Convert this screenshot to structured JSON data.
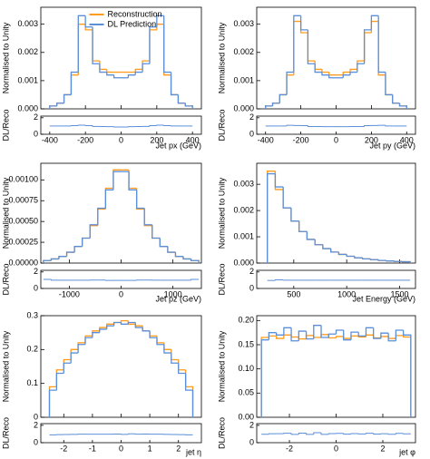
{
  "chart_data": [
    {
      "type": "histogram",
      "xlabel": "Jet px (GeV)",
      "ylabel": "Normalised to Unity",
      "legend": "upper center",
      "bins": [
        -400,
        -360,
        -320,
        -280,
        -240,
        -200,
        -160,
        -120,
        -80,
        -40,
        0,
        40,
        80,
        120,
        160,
        200,
        240,
        280,
        320,
        360,
        400
      ],
      "series": [
        {
          "name": "Reconstruction",
          "color": "#ff9a1a",
          "values": [
            0.0001,
            0.0002,
            0.0005,
            0.0012,
            0.003,
            0.0028,
            0.0017,
            0.0014,
            0.0013,
            0.0013,
            0.0013,
            0.0013,
            0.0014,
            0.0017,
            0.0028,
            0.003,
            0.0012,
            0.0005,
            0.0002,
            0.0001
          ]
        },
        {
          "name": "DL Prediction",
          "color": "#5b8fd9",
          "values": [
            0.0001,
            0.0002,
            0.0005,
            0.0013,
            0.0033,
            0.0029,
            0.0016,
            0.0013,
            0.0012,
            0.0011,
            0.0011,
            0.0012,
            0.0013,
            0.0016,
            0.0029,
            0.0033,
            0.0013,
            0.0005,
            0.0002,
            0.0001
          ]
        }
      ],
      "xlim": [
        -450,
        450
      ],
      "xticks": [
        -400,
        -200,
        0,
        200,
        400
      ],
      "ylim": [
        0,
        0.0036
      ],
      "yticks": [
        {
          "value": 0,
          "label": "0.000"
        },
        0.001,
        0.002,
        0.003
      ],
      "ratio": {
        "ylabel": "DL/Reco",
        "ylim": [
          0,
          2.2
        ],
        "yticks": [
          0,
          2
        ],
        "values": [
          1,
          1,
          1,
          1.05,
          1.1,
          1.04,
          0.95,
          0.93,
          0.92,
          0.88,
          0.88,
          0.92,
          0.93,
          0.95,
          1.04,
          1.1,
          1.05,
          1,
          1,
          1
        ]
      }
    },
    {
      "type": "histogram",
      "xlabel": "Jet py (GeV)",
      "ylabel": "Normalised to Unity",
      "bins": [
        -400,
        -360,
        -320,
        -280,
        -240,
        -200,
        -160,
        -120,
        -80,
        -40,
        0,
        40,
        80,
        120,
        160,
        200,
        240,
        280,
        320,
        360,
        400
      ],
      "series": [
        {
          "name": "Reconstruction",
          "color": "#ff9a1a",
          "values": [
            0.0001,
            0.0002,
            0.0005,
            0.0012,
            0.0031,
            0.0027,
            0.0017,
            0.0014,
            0.0013,
            0.0012,
            0.0012,
            0.0013,
            0.0014,
            0.0017,
            0.0027,
            0.0031,
            0.0012,
            0.0005,
            0.0002,
            0.0001
          ]
        },
        {
          "name": "DL Prediction",
          "color": "#5b8fd9",
          "values": [
            0.0001,
            0.0002,
            0.0005,
            0.0013,
            0.0033,
            0.0028,
            0.0016,
            0.0013,
            0.0012,
            0.0011,
            0.0011,
            0.0012,
            0.0013,
            0.0016,
            0.0028,
            0.0033,
            0.0013,
            0.0005,
            0.0002,
            0.0001
          ]
        }
      ],
      "xlim": [
        -450,
        450
      ],
      "xticks": [
        -400,
        -200,
        0,
        200,
        400
      ],
      "ylim": [
        0,
        0.0036
      ],
      "yticks": [
        {
          "value": 0,
          "label": "0.000"
        },
        0.001,
        0.002,
        0.003
      ],
      "ratio": {
        "ylabel": "DL/Reco",
        "ylim": [
          0,
          2.2
        ],
        "yticks": [
          0,
          2
        ],
        "values": [
          1,
          1,
          1,
          1.08,
          1.06,
          1.04,
          0.94,
          0.93,
          0.92,
          0.92,
          0.92,
          0.92,
          0.93,
          0.94,
          1.04,
          1.06,
          1.08,
          1,
          1,
          1
        ]
      }
    },
    {
      "type": "histogram",
      "xlabel": "Jet pz (GeV)",
      "ylabel": "Normalised to Unity",
      "bins": [
        -1500,
        -1350,
        -1200,
        -1050,
        -900,
        -750,
        -600,
        -450,
        -300,
        -150,
        0,
        150,
        300,
        450,
        600,
        750,
        900,
        1050,
        1200,
        1350,
        1500
      ],
      "series": [
        {
          "name": "Reconstruction",
          "color": "#ff9a1a",
          "values": [
            3e-05,
            5e-05,
            8e-05,
            0.00013,
            0.0002,
            0.0003,
            0.00045,
            0.00065,
            0.0009,
            0.00112,
            0.00112,
            0.0009,
            0.00065,
            0.00045,
            0.0003,
            0.0002,
            0.00013,
            8e-05,
            5e-05,
            3e-05
          ]
        },
        {
          "name": "DL Prediction",
          "color": "#5b8fd9",
          "values": [
            3e-05,
            5e-05,
            8e-05,
            0.00013,
            0.0002,
            0.0003,
            0.00046,
            0.00066,
            0.00088,
            0.0011,
            0.0011,
            0.00088,
            0.00066,
            0.00046,
            0.0003,
            0.0002,
            0.00013,
            8e-05,
            5e-05,
            3e-05
          ]
        }
      ],
      "xlim": [
        -1550,
        1550
      ],
      "xticks": [
        -1000,
        0,
        1000
      ],
      "ylim": [
        0,
        0.0012
      ],
      "yticks": [
        {
          "value": 0,
          "label": "0.00000"
        },
        {
          "value": 0.00025,
          "label": "0.00025"
        },
        {
          "value": 0.0005,
          "label": "0.00050"
        },
        {
          "value": 0.00075,
          "label": "0.00075"
        },
        {
          "value": 0.001,
          "label": "0.00100"
        }
      ],
      "ratio": {
        "ylabel": "DL/Reco",
        "ylim": [
          0,
          2.2
        ],
        "yticks": [
          0,
          2
        ],
        "values": [
          1.1,
          1,
          1,
          1,
          1,
          1,
          1.02,
          1.02,
          0.98,
          0.98,
          0.98,
          0.98,
          1.02,
          1.02,
          1,
          1,
          1,
          1,
          1,
          1.1
        ]
      }
    },
    {
      "type": "histogram",
      "xlabel": "Jet Energy (GeV)",
      "ylabel": "Normalised to Unity",
      "bins": [
        250,
        325,
        400,
        475,
        550,
        625,
        700,
        775,
        850,
        925,
        1000,
        1075,
        1150,
        1225,
        1300,
        1375,
        1450,
        1525,
        1600
      ],
      "series": [
        {
          "name": "Reconstruction",
          "color": "#ff9a1a",
          "values": [
            0.0035,
            0.0028,
            0.0021,
            0.0016,
            0.0012,
            0.0009,
            0.0007,
            0.00055,
            0.00042,
            0.00033,
            0.00026,
            0.0002,
            0.00016,
            0.00013,
            0.0001,
            8e-05,
            6e-05,
            5e-05
          ]
        },
        {
          "name": "DL Prediction",
          "color": "#5b8fd9",
          "values": [
            0.0034,
            0.0029,
            0.0021,
            0.0016,
            0.0012,
            0.0009,
            0.0007,
            0.00055,
            0.00042,
            0.00033,
            0.00026,
            0.0002,
            0.00016,
            0.00013,
            0.0001,
            8e-05,
            6e-05,
            5e-05
          ]
        }
      ],
      "xlim": [
        150,
        1650
      ],
      "xticks": [
        500,
        1000,
        1500
      ],
      "ylim": [
        0,
        0.0038
      ],
      "yticks": [
        {
          "value": 0,
          "label": "0.000"
        },
        0.001,
        0.002,
        0.003
      ],
      "ratio": {
        "ylabel": "DL/Reco",
        "ylim": [
          0,
          2.2
        ],
        "yticks": [
          0,
          2
        ],
        "values": [
          0.97,
          1.04,
          1,
          1,
          1,
          1,
          1,
          1,
          1,
          1,
          1,
          1,
          1,
          1,
          1,
          1,
          1,
          1
        ]
      }
    },
    {
      "type": "histogram",
      "xlabel": "jet η",
      "ylabel": "Normalised to Unity",
      "bins": [
        -2.5,
        -2.25,
        -2,
        -1.75,
        -1.5,
        -1.25,
        -1,
        -0.75,
        -0.5,
        -0.25,
        0,
        0.25,
        0.5,
        0.75,
        1,
        1.25,
        1.5,
        1.75,
        2,
        2.25,
        2.5
      ],
      "series": [
        {
          "name": "Reconstruction",
          "color": "#ff9a1a",
          "values": [
            0.09,
            0.14,
            0.17,
            0.2,
            0.22,
            0.24,
            0.255,
            0.265,
            0.275,
            0.28,
            0.285,
            0.275,
            0.27,
            0.255,
            0.24,
            0.22,
            0.2,
            0.17,
            0.14,
            0.09
          ]
        },
        {
          "name": "DL Prediction",
          "color": "#5b8fd9",
          "values": [
            0.08,
            0.13,
            0.16,
            0.19,
            0.215,
            0.235,
            0.25,
            0.26,
            0.27,
            0.28,
            0.275,
            0.28,
            0.265,
            0.255,
            0.235,
            0.215,
            0.19,
            0.16,
            0.13,
            0.08
          ]
        }
      ],
      "xlim": [
        -2.8,
        2.8
      ],
      "xticks": [
        -2,
        -1,
        0,
        1,
        2
      ],
      "ylim": [
        0,
        0.3
      ],
      "yticks": [
        0,
        0.1,
        0.2,
        0.3
      ],
      "ratio": {
        "ylabel": "DL/Reco",
        "ylim": [
          0,
          2.2
        ],
        "yticks": [
          0,
          2
        ],
        "values": [
          0.9,
          0.93,
          0.94,
          0.95,
          0.98,
          0.98,
          0.98,
          0.98,
          0.98,
          1,
          0.96,
          1.02,
          0.98,
          1,
          0.98,
          0.98,
          0.95,
          0.94,
          0.93,
          0.9
        ]
      }
    },
    {
      "type": "histogram",
      "xlabel": "jet φ",
      "ylabel": "Normalised to Unity",
      "bins": [
        -3.2,
        -2.88,
        -2.56,
        -2.24,
        -1.92,
        -1.6,
        -1.28,
        -0.96,
        -0.64,
        -0.32,
        0,
        0.32,
        0.64,
        0.96,
        1.28,
        1.6,
        1.92,
        2.24,
        2.56,
        2.88,
        3.2
      ],
      "series": [
        {
          "name": "Reconstruction",
          "color": "#ff9a1a",
          "values": [
            0.165,
            0.168,
            0.163,
            0.17,
            0.166,
            0.162,
            0.169,
            0.165,
            0.171,
            0.164,
            0.167,
            0.163,
            0.168,
            0.166,
            0.17,
            0.164,
            0.167,
            0.163,
            0.169,
            0.166
          ]
        },
        {
          "name": "DL Prediction",
          "color": "#5b8fd9",
          "values": [
            0.16,
            0.175,
            0.17,
            0.185,
            0.158,
            0.178,
            0.162,
            0.19,
            0.165,
            0.172,
            0.18,
            0.16,
            0.176,
            0.168,
            0.185,
            0.163,
            0.174,
            0.158,
            0.18,
            0.17
          ]
        }
      ],
      "xlim": [
        -3.4,
        3.4
      ],
      "xticks": [
        -2,
        0,
        2
      ],
      "ylim": [
        0,
        0.21
      ],
      "yticks": [
        {
          "value": 0,
          "label": "0.00"
        },
        {
          "value": 0.05,
          "label": "0.05"
        },
        {
          "value": 0.1,
          "label": "0.10"
        },
        {
          "value": 0.15,
          "label": "0.15"
        },
        {
          "value": 0.2,
          "label": "0.20"
        }
      ],
      "ratio": {
        "ylabel": "DL/Reco",
        "ylim": [
          0,
          2.2
        ],
        "yticks": [
          0,
          2
        ],
        "values": [
          0.97,
          1.04,
          1.04,
          1.09,
          0.95,
          1.1,
          0.96,
          1.15,
          0.96,
          1.05,
          1.08,
          0.98,
          1.05,
          1.01,
          1.09,
          0.99,
          1.04,
          0.97,
          1.07,
          1.02
        ]
      }
    }
  ]
}
